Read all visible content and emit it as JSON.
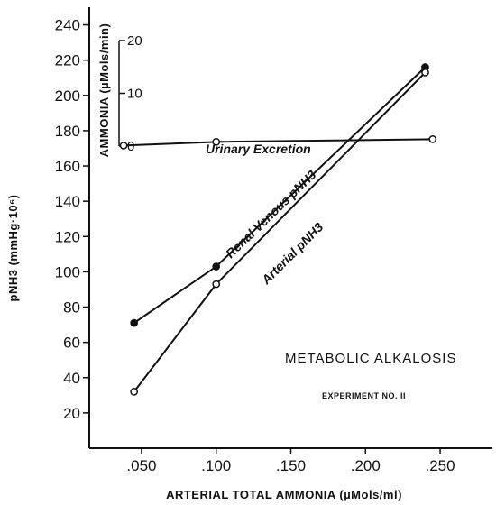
{
  "chart_data": {
    "type": "line",
    "xlabel": "ARTERIAL TOTAL AMMONIA (µMols/ml)",
    "ylabel": "pNH3 (mmHg·10⁶)",
    "y2label": "AMMONIA (µMols/min)",
    "xlim": [
      0.015,
      0.285
    ],
    "ylim": [
      0,
      250
    ],
    "y2lim": [
      0,
      20
    ],
    "x_ticks": [
      ".050",
      ".100",
      ".150",
      ".200",
      ".250"
    ],
    "y_ticks": [
      "20",
      "40",
      "60",
      "80",
      "100",
      "120",
      "140",
      "160",
      "180",
      "200",
      "220",
      "240"
    ],
    "y2_ticks": [
      "0",
      "10",
      "20"
    ],
    "grid": false,
    "series": [
      {
        "name": "Renal Venous pNH3",
        "axis": "left",
        "marker": "filled",
        "x": [
          0.045,
          0.1,
          0.24
        ],
        "y": [
          71,
          103,
          216
        ]
      },
      {
        "name": "Arterial pNH3",
        "axis": "left",
        "marker": "open",
        "x": [
          0.045,
          0.1,
          0.24
        ],
        "y": [
          32,
          93,
          213
        ]
      },
      {
        "name": "Urinary Excretion",
        "axis": "right",
        "marker": "open",
        "x": [
          0.038,
          0.1,
          0.245
        ],
        "y": [
          0.1,
          0.8,
          1.3
        ]
      }
    ],
    "annotations": [
      "METABOLIC ALKALOSIS",
      "EXPERIMENT NO. II"
    ]
  }
}
